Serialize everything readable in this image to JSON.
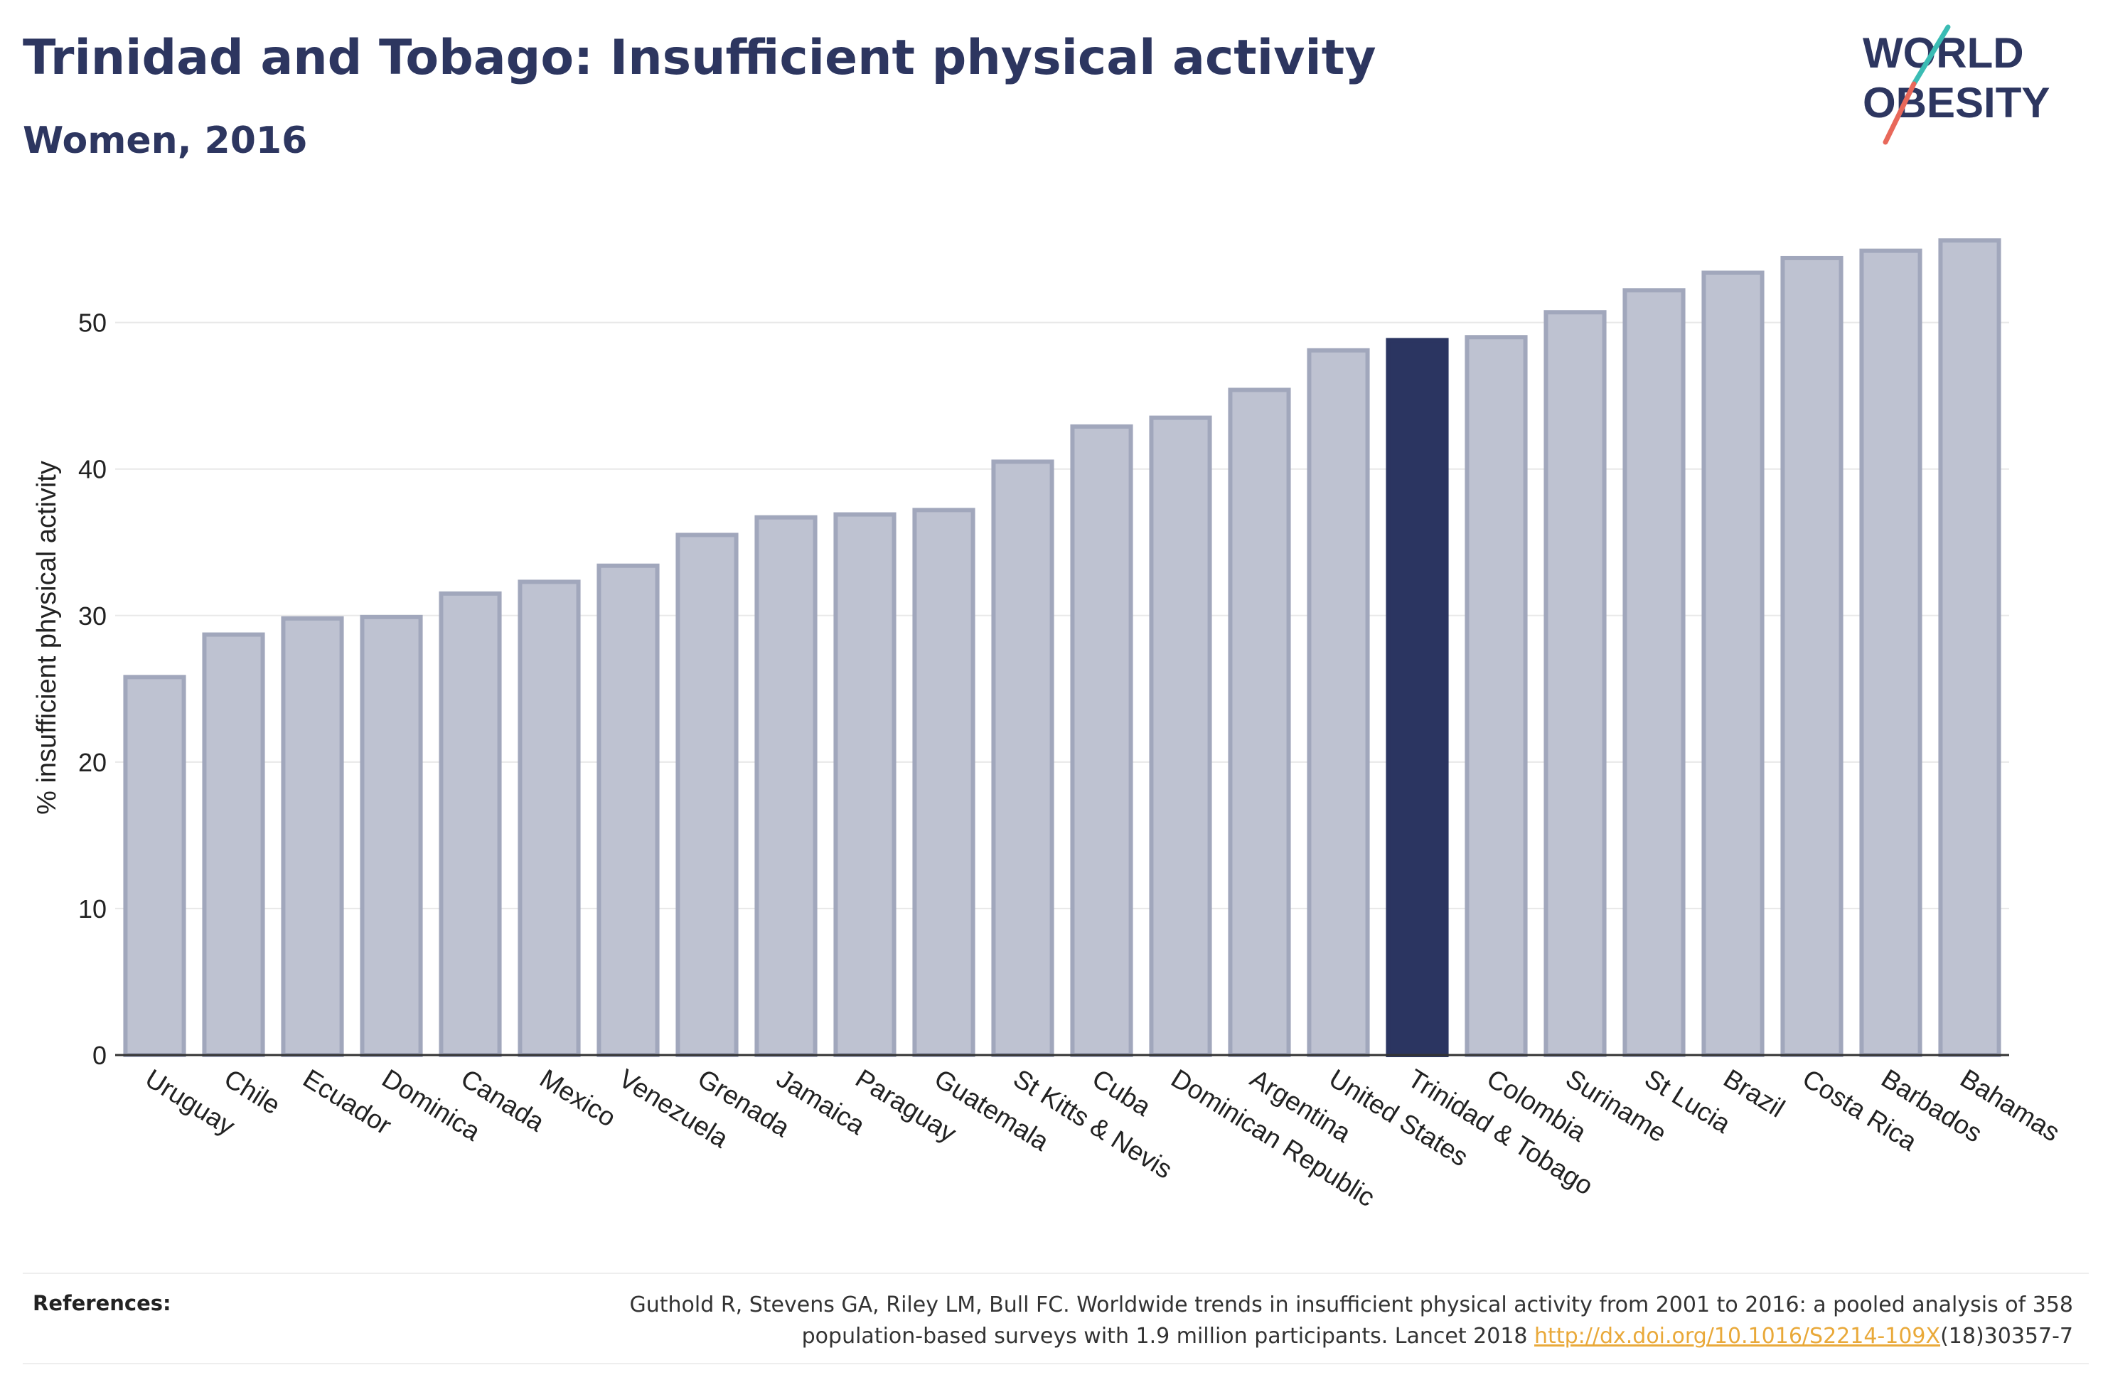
{
  "header": {
    "title": "Trinidad and Tobago: Insufficient physical activity",
    "subtitle": "Women, 2016"
  },
  "logo": {
    "line1": "WORLD",
    "line2": "OBESITY",
    "colors": {
      "text": "#2d3660",
      "slash_teal": "#3bbcb4",
      "slash_coral": "#e8685a"
    }
  },
  "colors": {
    "highlight": "#2b3561",
    "bar_fill": "#bec2d1",
    "bar_stroke": "#a1a7bc",
    "grid": "#e8e8e8",
    "axis": "#333333"
  },
  "chart_data": {
    "type": "bar",
    "ylabel": "% insufficient physical activity",
    "ylim": [
      0,
      56
    ],
    "yticks": [
      0,
      10,
      20,
      30,
      40,
      50
    ],
    "grid": true,
    "highlight": "Trinidad & Tobago",
    "categories": [
      "Uruguay",
      "Chile",
      "Ecuador",
      "Dominica",
      "Canada",
      "Mexico",
      "Venezuela",
      "Grenada",
      "Jamaica",
      "Paraguay",
      "Guatemala",
      "St Kitts & Nevis",
      "Cuba",
      "Dominican Republic",
      "Argentina",
      "United States",
      "Trinidad & Tobago",
      "Colombia",
      "Suriname",
      "St Lucia",
      "Brazil",
      "Costa Rica",
      "Barbados",
      "Bahamas"
    ],
    "values": [
      25.8,
      28.7,
      29.8,
      29.9,
      31.5,
      32.3,
      33.4,
      35.5,
      36.7,
      36.9,
      37.2,
      40.5,
      42.9,
      43.5,
      45.4,
      48.1,
      48.8,
      49.0,
      50.7,
      52.2,
      53.4,
      54.4,
      54.9,
      55.6
    ]
  },
  "references": {
    "label": "References:",
    "text_line1": "Guthold R, Stevens GA, Riley LM, Bull FC. Worldwide trends in insufficient physical activity from 2001 to 2016: a pooled analysis of 358",
    "text_line2_prefix": "population-based surveys with 1.9 million participants. Lancet 2018 ",
    "link": "http://dx.doi.org/10.1016/S2214-109X",
    "suffix": "(18)30357-7"
  }
}
